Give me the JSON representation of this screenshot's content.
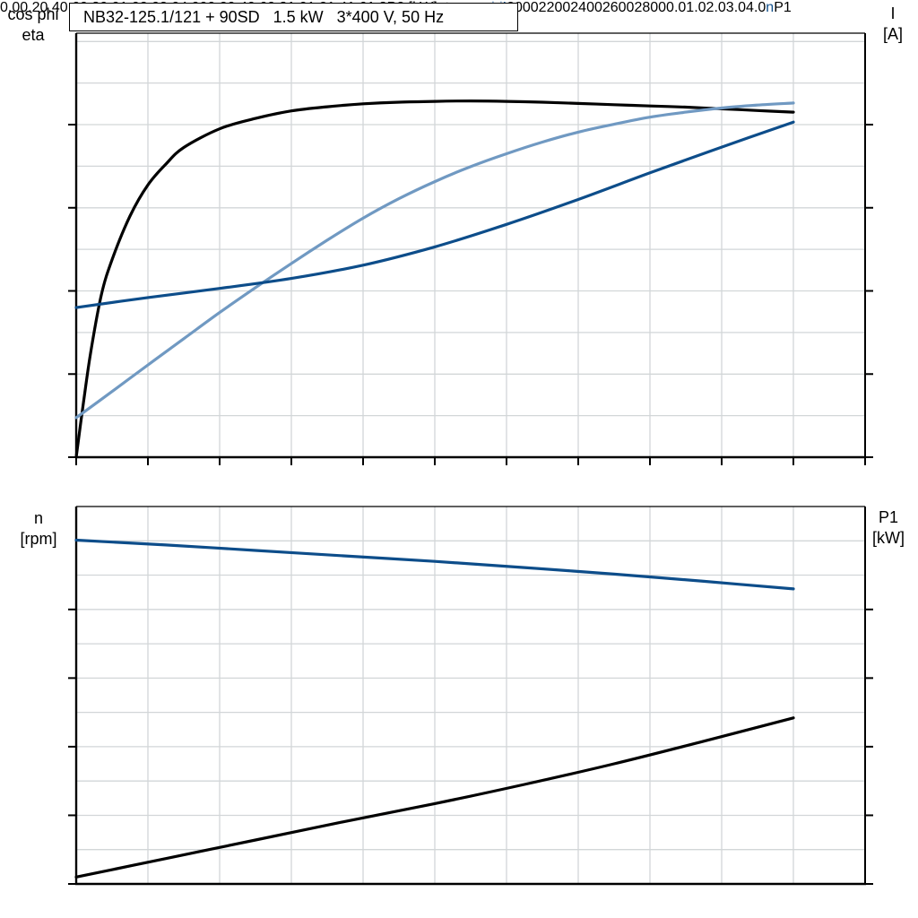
{
  "header": {
    "title": "NB32-125.1/121 + 90SD   1.5 kW   3*400 V, 50 Hz"
  },
  "colors": {
    "eta": "#000000",
    "cos_phi": "#7099c2",
    "current": "#0d4d8a",
    "speed": "#0d4d8a",
    "p1": "#000000",
    "grid": "#d2d6d8",
    "axis": "#000000"
  },
  "chart_data": [
    {
      "type": "line",
      "title": "NB32-125.1/121 + 90SD   1.5 kW   3*400 V, 50 Hz",
      "x_axis": {
        "unit_label": "P2 [kW]",
        "range": [
          0,
          2.2
        ],
        "major_ticks": [
          0,
          0.2,
          0.4,
          0.6,
          0.8,
          1.0,
          1.2,
          1.4,
          1.6,
          1.8,
          2.0,
          2.2
        ],
        "tick_labels": [
          "0",
          "0.2",
          "0.4",
          "0.6",
          "0.8",
          "1.0",
          "1.2",
          "1.4",
          "1.6",
          "1.8",
          "",
          ""
        ],
        "ticks_visible": true
      },
      "left_axis": {
        "label_lines": [
          "cos phi",
          "eta"
        ],
        "range": [
          0,
          1.02
        ],
        "tick_values": [
          0,
          0.2,
          0.4,
          0.6,
          0.8
        ],
        "tick_labels": [
          "0.0",
          "0.2",
          "0.4",
          "0.6",
          "0.8"
        ],
        "minor_grid_step": 0.1
      },
      "right_axis": {
        "label_lines": [
          "I",
          "[A]"
        ],
        "range": [
          0,
          5.1
        ],
        "tick_values": [
          0,
          1,
          2,
          3,
          4
        ],
        "tick_labels": [
          "0.0",
          "1.0",
          "2.0",
          "3.0",
          "4.0"
        ],
        "minor_grid_step": 0.5
      },
      "series": [
        {
          "name": "eta",
          "label": "eta",
          "axis": "left",
          "color_key": "eta",
          "points": [
            [
              0,
              0
            ],
            [
              0.02,
              0.13
            ],
            [
              0.04,
              0.25
            ],
            [
              0.07,
              0.39
            ],
            [
              0.1,
              0.475
            ],
            [
              0.15,
              0.58
            ],
            [
              0.2,
              0.655
            ],
            [
              0.25,
              0.705
            ],
            [
              0.3,
              0.745
            ],
            [
              0.4,
              0.79
            ],
            [
              0.5,
              0.815
            ],
            [
              0.6,
              0.833
            ],
            [
              0.7,
              0.843
            ],
            [
              0.8,
              0.85
            ],
            [
              0.9,
              0.854
            ],
            [
              1.0,
              0.856
            ],
            [
              1.1,
              0.857
            ],
            [
              1.2,
              0.856
            ],
            [
              1.3,
              0.854
            ],
            [
              1.4,
              0.851
            ],
            [
              1.5,
              0.848
            ],
            [
              1.6,
              0.845
            ],
            [
              1.7,
              0.842
            ],
            [
              1.8,
              0.838
            ],
            [
              1.9,
              0.834
            ],
            [
              2.0,
              0.83
            ]
          ]
        },
        {
          "name": "cos phi",
          "label": "cos phi",
          "axis": "left",
          "color_key": "cos_phi",
          "points": [
            [
              0,
              0.095
            ],
            [
              0.1,
              0.158
            ],
            [
              0.2,
              0.222
            ],
            [
              0.3,
              0.285
            ],
            [
              0.4,
              0.348
            ],
            [
              0.5,
              0.408
            ],
            [
              0.6,
              0.466
            ],
            [
              0.7,
              0.522
            ],
            [
              0.8,
              0.575
            ],
            [
              0.9,
              0.622
            ],
            [
              1.0,
              0.663
            ],
            [
              1.1,
              0.699
            ],
            [
              1.2,
              0.73
            ],
            [
              1.3,
              0.758
            ],
            [
              1.4,
              0.782
            ],
            [
              1.5,
              0.801
            ],
            [
              1.6,
              0.818
            ],
            [
              1.7,
              0.83
            ],
            [
              1.8,
              0.84
            ],
            [
              1.9,
              0.847
            ],
            [
              2.0,
              0.852
            ]
          ]
        },
        {
          "name": "I",
          "label": "I",
          "axis": "right",
          "color_key": "current",
          "points": [
            [
              0,
              1.8
            ],
            [
              0.2,
              1.92
            ],
            [
              0.4,
              2.03
            ],
            [
              0.6,
              2.15
            ],
            [
              0.8,
              2.31
            ],
            [
              1.0,
              2.53
            ],
            [
              1.2,
              2.8
            ],
            [
              1.4,
              3.1
            ],
            [
              1.6,
              3.42
            ],
            [
              1.8,
              3.73
            ],
            [
              2.0,
              4.03
            ]
          ]
        }
      ]
    },
    {
      "type": "line",
      "title": "",
      "x_axis": {
        "unit_label": "",
        "range": [
          0,
          2.2
        ],
        "major_ticks": [
          0,
          0.2,
          0.4,
          0.6,
          0.8,
          1.0,
          1.2,
          1.4,
          1.6,
          1.8,
          2.0,
          2.2
        ],
        "tick_labels": [
          "",
          "",
          "",
          "",
          "",
          "",
          "",
          "",
          "",
          "",
          "",
          ""
        ],
        "ticks_visible": false
      },
      "left_axis": {
        "label_lines": [
          "n",
          "[rpm]"
        ],
        "range": [
          2000,
          3100
        ],
        "tick_values": [
          2000,
          2200,
          2400,
          2600,
          2800
        ],
        "tick_labels": [
          "2000",
          "2200",
          "2400",
          "2600",
          "2800"
        ],
        "minor_grid_step": 100
      },
      "right_axis": {
        "label_lines": [
          "P1",
          "[kW]"
        ],
        "range": [
          0,
          5.5
        ],
        "tick_values": [
          0,
          1,
          2,
          3,
          4
        ],
        "tick_labels": [
          "0.0",
          "1.0",
          "2.0",
          "3.0",
          "4.0"
        ],
        "minor_grid_step": 0.5
      },
      "series": [
        {
          "name": "n",
          "label": "n",
          "axis": "left",
          "color_key": "speed",
          "points": [
            [
              0,
              3002
            ],
            [
              0.25,
              2988
            ],
            [
              0.5,
              2972
            ],
            [
              0.75,
              2956
            ],
            [
              1.0,
              2940
            ],
            [
              1.25,
              2922
            ],
            [
              1.5,
              2903
            ],
            [
              1.75,
              2882
            ],
            [
              2.0,
              2860
            ]
          ]
        },
        {
          "name": "P1",
          "label": "P1",
          "axis": "right",
          "color_key": "p1",
          "points": [
            [
              0,
              0.1
            ],
            [
              0.25,
              0.37
            ],
            [
              0.5,
              0.64
            ],
            [
              0.75,
              0.91
            ],
            [
              1.0,
              1.17
            ],
            [
              1.25,
              1.45
            ],
            [
              1.5,
              1.75
            ],
            [
              1.75,
              2.08
            ],
            [
              2.0,
              2.42
            ]
          ]
        }
      ]
    }
  ]
}
